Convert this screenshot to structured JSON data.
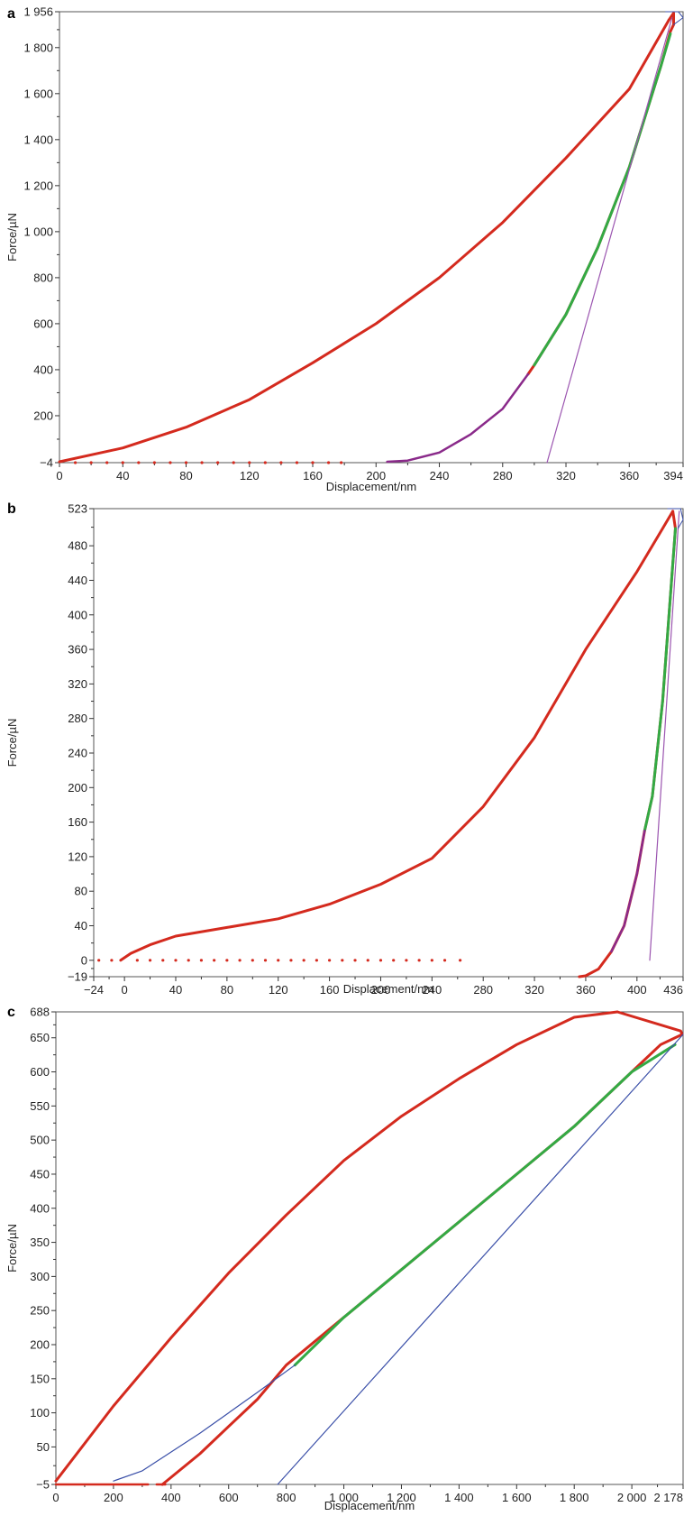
{
  "chart_data": [
    {
      "type": "line",
      "panel_label": "a",
      "xlabel": "Displacement/nm",
      "ylabel": "Force/µN",
      "xlim": [
        0,
        394
      ],
      "ylim": [
        -4,
        1956
      ],
      "x_ticks": [
        0,
        40,
        80,
        120,
        160,
        200,
        240,
        280,
        320,
        360,
        394
      ],
      "x_tick_labels": [
        "0",
        "40",
        "80",
        "120",
        "160",
        "200",
        "240",
        "280",
        "320",
        "360",
        "394"
      ],
      "y_ticks": [
        -4,
        200,
        400,
        600,
        800,
        1000,
        1200,
        1400,
        1600,
        1800,
        1956
      ],
      "y_tick_labels": [
        "−4",
        "200",
        "400",
        "600",
        "800",
        "1 000",
        "1 200",
        "1 400",
        "1 600",
        "1 800",
        "1 956"
      ],
      "grid": false,
      "colors": {
        "loading": "#d42a1e",
        "unloading_fit": "#33aa44",
        "tangent": "#9b55b0",
        "blue": "#3a4fa8"
      },
      "series": [
        {
          "role": "loading",
          "color": "#d42a1e",
          "width": 3,
          "x": [
            0,
            40,
            80,
            120,
            160,
            200,
            240,
            280,
            320,
            360,
            385
          ],
          "y": [
            0,
            60,
            150,
            270,
            430,
            600,
            800,
            1040,
            1320,
            1620,
            1920
          ]
        },
        {
          "role": "dwell",
          "color": "#d42a1e",
          "width": 3,
          "x": [
            385,
            388,
            388,
            386
          ],
          "y": [
            1920,
            1950,
            1900,
            1870
          ]
        },
        {
          "role": "unloading",
          "color": "#d42a1e",
          "width": 3,
          "x": [
            386,
            380,
            360,
            340,
            320,
            300,
            296
          ],
          "y": [
            1870,
            1720,
            1280,
            930,
            640,
            420,
            380
          ]
        },
        {
          "role": "unloading-fit",
          "color": "#33aa44",
          "width": 3,
          "x": [
            386,
            380,
            360,
            340,
            320,
            300
          ],
          "y": [
            1860,
            1720,
            1280,
            930,
            640,
            420
          ]
        },
        {
          "role": "unloading-tail",
          "color": "#8a2a8a",
          "width": 2.5,
          "x": [
            296,
            280,
            260,
            240,
            220,
            207
          ],
          "y": [
            380,
            230,
            120,
            40,
            5,
            0
          ]
        },
        {
          "role": "tangent",
          "color": "#9b55b0",
          "width": 1.2,
          "x": [
            308,
            387
          ],
          "y": [
            -4,
            1930
          ]
        },
        {
          "role": "baseline-dots",
          "color": "#d42a1e",
          "dots": true,
          "width": 1.6,
          "x": [
            10,
            20,
            30,
            40,
            50,
            60,
            70,
            80,
            90,
            100,
            110,
            120,
            130,
            140,
            150,
            160,
            170,
            178
          ],
          "y": [
            -4,
            -4,
            -4,
            -4,
            -4,
            -4,
            -4,
            -4,
            -4,
            -4,
            -4,
            -4,
            -4,
            -4,
            -4,
            -4,
            -4,
            -4
          ]
        },
        {
          "role": "tip-marker",
          "color": "#3a4fa8",
          "width": 1,
          "x": [
            383,
            391,
            394,
            388
          ],
          "y": [
            1956,
            1956,
            1930,
            1900
          ]
        }
      ]
    },
    {
      "type": "line",
      "panel_label": "b",
      "xlabel": "Displacement/nm",
      "ylabel": "Force/µN",
      "xlim": [
        -24,
        436
      ],
      "ylim": [
        -19,
        523
      ],
      "x_ticks": [
        -24,
        0,
        40,
        80,
        120,
        160,
        200,
        240,
        280,
        320,
        360,
        400,
        436
      ],
      "x_tick_labels": [
        "−24",
        "0",
        "40",
        "80",
        "120",
        "160",
        "200",
        "240",
        "280",
        "320",
        "360",
        "400",
        "436"
      ],
      "y_ticks": [
        -19,
        0,
        40,
        80,
        120,
        160,
        200,
        240,
        280,
        320,
        360,
        400,
        440,
        480,
        523
      ],
      "y_tick_labels": [
        "−19",
        "0",
        "40",
        "80",
        "120",
        "160",
        "200",
        "240",
        "280",
        "320",
        "360",
        "400",
        "440",
        "480",
        "523"
      ],
      "grid": false,
      "colors": {
        "loading": "#d42a1e",
        "unloading_fit": "#33aa44",
        "tangent": "#9b55b0",
        "blue": "#3a4fa8"
      },
      "series": [
        {
          "role": "loading",
          "color": "#d42a1e",
          "width": 3,
          "x": [
            -3,
            5,
            20,
            40,
            80,
            120,
            160,
            200,
            240,
            280,
            320,
            360,
            400,
            420,
            428
          ],
          "y": [
            0,
            8,
            18,
            28,
            38,
            48,
            65,
            88,
            118,
            178,
            258,
            360,
            450,
            500,
            520
          ]
        },
        {
          "role": "unloading",
          "color": "#d42a1e",
          "width": 3,
          "x": [
            428,
            430,
            426,
            420,
            412,
            406,
            400,
            390,
            380,
            370,
            360,
            355
          ],
          "y": [
            520,
            500,
            420,
            300,
            190,
            150,
            100,
            40,
            10,
            -10,
            -18,
            -19
          ]
        },
        {
          "role": "unloading-fit",
          "color": "#33aa44",
          "width": 3,
          "x": [
            430,
            426,
            420,
            412,
            406
          ],
          "y": [
            500,
            420,
            300,
            190,
            150
          ]
        },
        {
          "role": "unloading-tail",
          "color": "#8a2a8a",
          "width": 2.5,
          "x": [
            406,
            400,
            390,
            380
          ],
          "y": [
            150,
            100,
            40,
            10
          ]
        },
        {
          "role": "tangent",
          "color": "#9b55b0",
          "width": 1.2,
          "x": [
            410,
            433
          ],
          "y": [
            0,
            520
          ]
        },
        {
          "role": "baseline-dots",
          "color": "#d42a1e",
          "dots": true,
          "width": 1.6,
          "x": [
            -20,
            -10,
            10,
            20,
            30,
            40,
            50,
            60,
            70,
            80,
            90,
            100,
            110,
            120,
            130,
            140,
            150,
            160,
            170,
            180,
            190,
            200,
            210,
            220,
            230,
            240,
            250,
            262
          ],
          "y": [
            0,
            0,
            0,
            0,
            0,
            0,
            0,
            0,
            0,
            0,
            0,
            0,
            0,
            0,
            0,
            0,
            0,
            0,
            0,
            0,
            0,
            0,
            0,
            0,
            0,
            0,
            0,
            0
          ]
        },
        {
          "role": "tip-marker",
          "color": "#3a4fa8",
          "width": 1,
          "x": [
            424,
            434,
            436,
            432
          ],
          "y": [
            523,
            523,
            510,
            500
          ]
        }
      ]
    },
    {
      "type": "line",
      "panel_label": "c",
      "xlabel": "Displacement/nm",
      "ylabel": "Force/µN",
      "xlim": [
        0,
        2178
      ],
      "ylim": [
        -5,
        688
      ],
      "x_ticks": [
        0,
        200,
        400,
        600,
        800,
        1000,
        1200,
        1400,
        1600,
        1800,
        2000,
        2178
      ],
      "x_tick_labels": [
        "0",
        "200",
        "400",
        "600",
        "800",
        "1 000",
        "1 200",
        "1 400",
        "1 600",
        "1 800",
        "2 000",
        "2 178"
      ],
      "y_ticks": [
        -5,
        50,
        100,
        150,
        200,
        250,
        300,
        350,
        400,
        450,
        500,
        550,
        600,
        650,
        688
      ],
      "y_tick_labels": [
        "−5",
        "50",
        "100",
        "150",
        "200",
        "250",
        "300",
        "350",
        "400",
        "450",
        "500",
        "550",
        "600",
        "650",
        "688"
      ],
      "grid": false,
      "colors": {
        "loading": "#d42a1e",
        "unloading_fit": "#33aa44",
        "tangent": "#3a4fa8",
        "blue": "#3a4fa8"
      },
      "series": [
        {
          "role": "loading",
          "color": "#d42a1e",
          "width": 3,
          "x": [
            0,
            200,
            400,
            600,
            800,
            1000,
            1200,
            1400,
            1600,
            1800,
            1950
          ],
          "y": [
            0,
            110,
            210,
            305,
            390,
            470,
            535,
            590,
            640,
            680,
            688
          ]
        },
        {
          "role": "dwell",
          "color": "#d42a1e",
          "width": 3,
          "x": [
            1950,
            2170,
            2175
          ],
          "y": [
            688,
            660,
            655
          ]
        },
        {
          "role": "unloading",
          "color": "#d42a1e",
          "width": 3,
          "x": [
            2175,
            2100,
            2000,
            1800,
            1600,
            1400,
            1200,
            1000,
            800,
            700,
            600,
            500,
            370
          ],
          "y": [
            655,
            640,
            600,
            520,
            450,
            380,
            310,
            240,
            170,
            120,
            80,
            40,
            -5
          ]
        },
        {
          "role": "unloading-fit",
          "color": "#33aa44",
          "width": 3,
          "x": [
            2150,
            2000,
            1800,
            1600,
            1400,
            1200,
            1000,
            830
          ],
          "y": [
            640,
            600,
            520,
            450,
            380,
            310,
            240,
            170
          ]
        },
        {
          "role": "fit-extension",
          "color": "#3a4fa8",
          "width": 1.2,
          "x": [
            830,
            700,
            500,
            300,
            200
          ],
          "y": [
            170,
            130,
            70,
            15,
            0
          ]
        },
        {
          "role": "tangent",
          "color": "#3a4fa8",
          "width": 1.2,
          "x": [
            770,
            2178
          ],
          "y": [
            -5,
            655
          ]
        },
        {
          "role": "baseline",
          "color": "#d42a1e",
          "width": 2.5,
          "x": [
            0,
            320
          ],
          "y": [
            -5,
            -5
          ]
        },
        {
          "role": "baseline-start",
          "color": "#d42a1e",
          "width": 2.5,
          "x": [
            350,
            380
          ],
          "y": [
            -5,
            -5
          ]
        }
      ]
    }
  ]
}
